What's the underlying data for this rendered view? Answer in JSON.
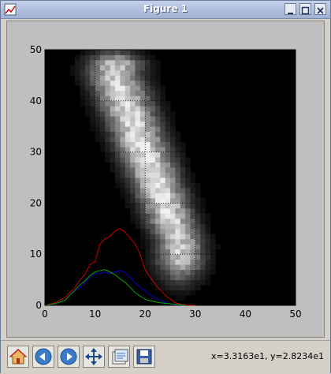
{
  "window": {
    "title": "Figure 1"
  },
  "plot": {
    "x_ticks": [
      "0",
      "10",
      "20",
      "30",
      "40",
      "50"
    ],
    "y_ticks": [
      "0",
      "10",
      "20",
      "30",
      "40",
      "50"
    ],
    "xlim": [
      0,
      50
    ],
    "ylim": [
      0,
      50
    ],
    "grid": true,
    "colormap": "gray"
  },
  "toolbar": {
    "buttons": [
      "home-icon",
      "back-icon",
      "forward-icon",
      "pan-icon",
      "configure-subplots-icon",
      "save-icon"
    ],
    "coords": "x=3.3163e1, y=2.8234e1"
  },
  "chart_data": {
    "type": "heatmap",
    "xlim": [
      0,
      50
    ],
    "ylim": [
      0,
      50
    ],
    "grid": true,
    "series": [
      {
        "color": "#cc0000",
        "x": [
          0,
          2,
          4,
          5,
          6,
          7,
          8,
          9,
          10,
          11,
          12,
          13,
          14,
          15,
          16,
          17,
          18,
          19,
          20,
          21,
          22,
          23,
          24,
          25,
          26,
          27,
          28,
          29,
          30
        ],
        "y": [
          0,
          0.5,
          1.5,
          2.5,
          3.5,
          5,
          6,
          8,
          8.5,
          12,
          13,
          13.5,
          14.5,
          15,
          14.3,
          13.2,
          12,
          10,
          7,
          5.5,
          4.2,
          3,
          2,
          1.2,
          0.5,
          0.2,
          0.1,
          0,
          0
        ]
      },
      {
        "color": "#0000cc",
        "x": [
          0,
          2,
          4,
          5,
          6,
          7,
          8,
          9,
          10,
          11,
          12,
          13,
          14,
          15,
          16,
          17,
          18,
          19,
          20,
          21,
          22,
          23,
          24,
          25,
          26,
          27,
          28
        ],
        "y": [
          0,
          0.3,
          1,
          2,
          2.8,
          3.5,
          4.5,
          5.5,
          6.2,
          6.3,
          6.5,
          6.2,
          6.5,
          6.8,
          6.4,
          5.5,
          4.5,
          3.6,
          2.8,
          2,
          1.5,
          1,
          0.6,
          0.3,
          0.1,
          0.05,
          0
        ]
      },
      {
        "color": "#00aa00",
        "x": [
          0,
          2,
          4,
          5,
          6,
          7,
          8,
          9,
          10,
          11,
          12,
          13,
          14,
          15,
          16,
          17,
          18,
          19,
          20,
          21,
          22,
          23,
          24,
          25,
          26,
          27,
          28
        ],
        "y": [
          0,
          0.3,
          1,
          2,
          3,
          4,
          4.8,
          5.8,
          6.5,
          6.8,
          7,
          6.5,
          6,
          5.2,
          4.5,
          3.5,
          2.5,
          1.8,
          1.2,
          0.9,
          0.7,
          0.5,
          0.4,
          0.3,
          0.2,
          0.1,
          0
        ]
      }
    ]
  }
}
